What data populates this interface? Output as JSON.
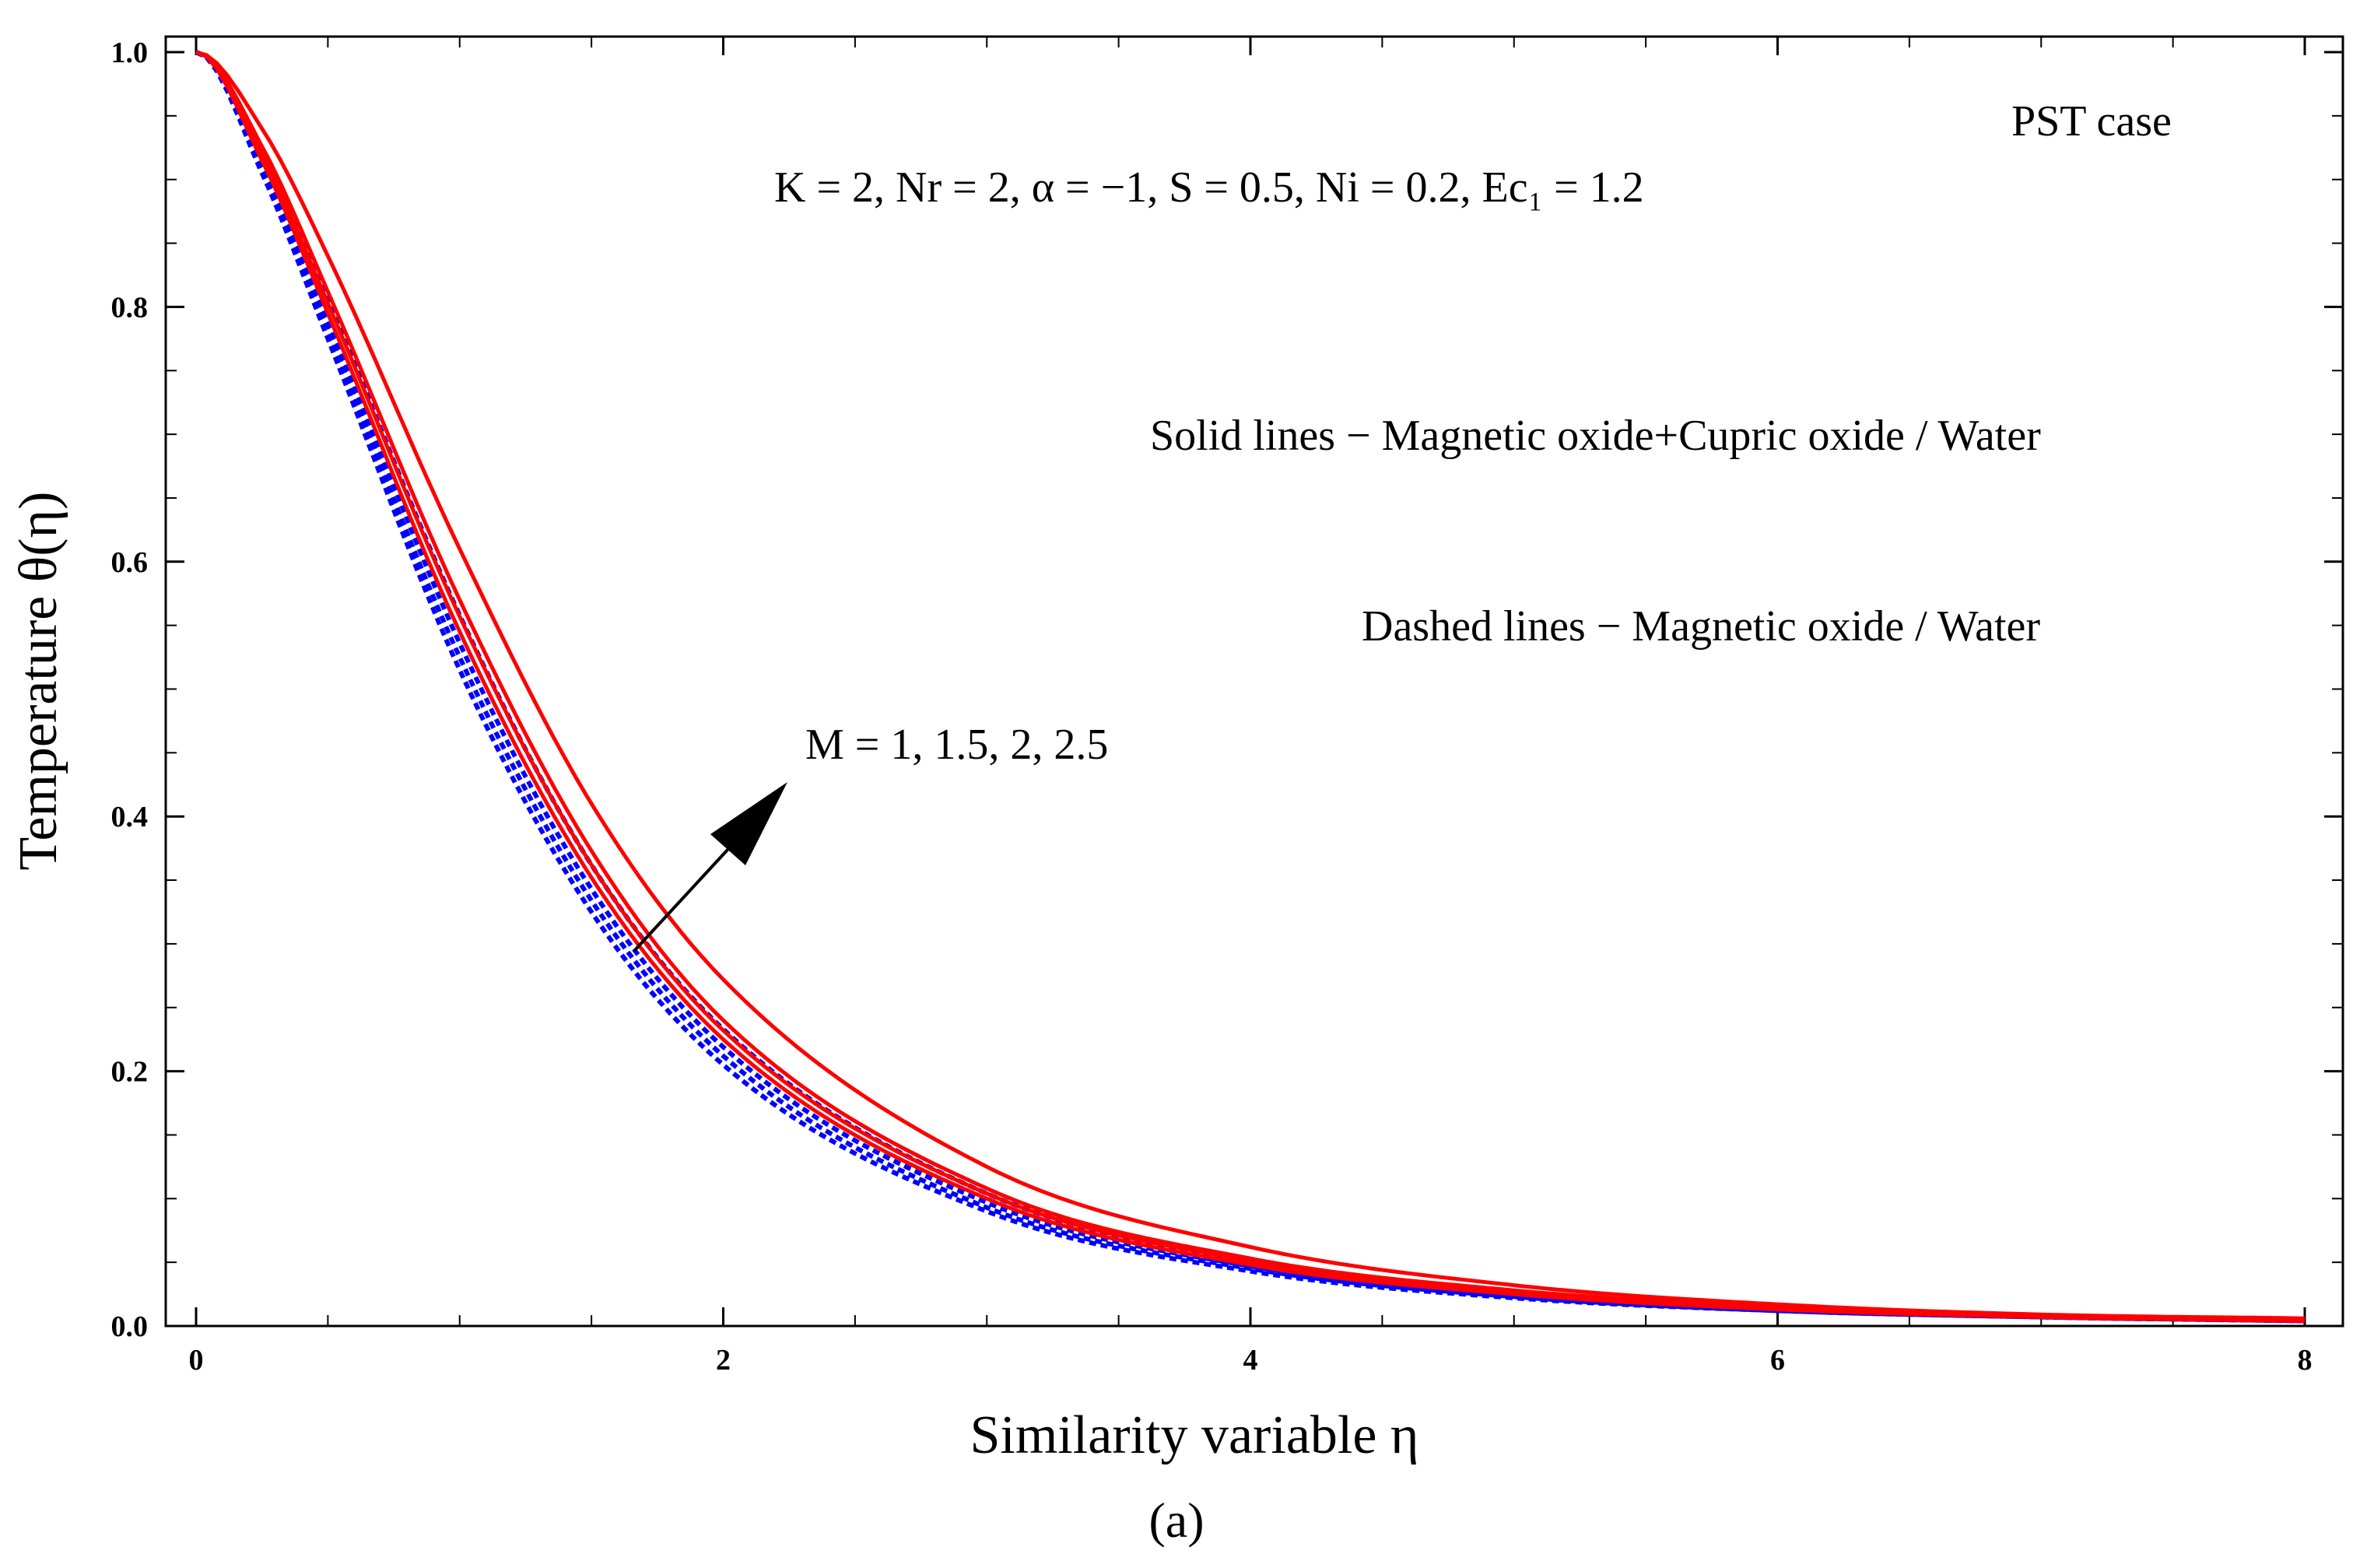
{
  "chart_data": {
    "type": "line",
    "title": "",
    "xlabel": "Similarity variable η",
    "ylabel": "Temperature θ(η)",
    "panel_label": "(a)",
    "xlim": [
      0,
      8
    ],
    "ylim": [
      0,
      1.0
    ],
    "x_ticks": [
      "0",
      "2",
      "4",
      "6",
      "8"
    ],
    "y_ticks": [
      "0.0",
      "0.2",
      "0.4",
      "0.6",
      "0.8",
      "1.0"
    ],
    "grid": false,
    "annotations": {
      "case": "PST case",
      "parameters": "K = 2,  Nr = 2,  α = −1, S = 0.5,  Ni = 0.2, Ec₁ = 1.2",
      "solid_legend": "Solid lines − Magnetic oxide+Cupric oxide / Water",
      "dashed_legend": "Dashed lines − Magnetic oxide / Water",
      "arrow_label": "M = 1, 1.5, 2, 2.5"
    },
    "x": [
      0,
      0.25,
      0.5,
      1,
      1.5,
      2,
      3,
      4,
      5,
      6,
      7,
      8
    ],
    "series": [
      {
        "style": "solid",
        "color": "#ff0000",
        "M": 1,
        "values": [
          1.0,
          0.915,
          0.795,
          0.545,
          0.352,
          0.225,
          0.1,
          0.048,
          0.025,
          0.013,
          0.007,
          0.004
        ]
      },
      {
        "style": "solid",
        "color": "#ff0000",
        "M": 1.5,
        "values": [
          1.0,
          0.92,
          0.803,
          0.557,
          0.362,
          0.232,
          0.104,
          0.051,
          0.026,
          0.014,
          0.008,
          0.004
        ]
      },
      {
        "style": "solid",
        "color": "#ff0000",
        "M": 2,
        "values": [
          1.0,
          0.926,
          0.812,
          0.57,
          0.373,
          0.24,
          0.108,
          0.053,
          0.028,
          0.015,
          0.008,
          0.005
        ]
      },
      {
        "style": "solid",
        "color": "#ff0000",
        "M": 2.5,
        "values": [
          1.0,
          0.94,
          0.84,
          0.61,
          0.41,
          0.272,
          0.125,
          0.062,
          0.032,
          0.017,
          0.009,
          0.006
        ]
      },
      {
        "style": "dashed",
        "color": "#0000ff",
        "M": 1,
        "values": [
          1.0,
          0.905,
          0.775,
          0.515,
          0.325,
          0.205,
          0.09,
          0.043,
          0.022,
          0.012,
          0.007,
          0.004
        ]
      },
      {
        "style": "dashed",
        "color": "#0000ff",
        "M": 1.5,
        "values": [
          1.0,
          0.909,
          0.782,
          0.525,
          0.334,
          0.212,
          0.093,
          0.045,
          0.023,
          0.012,
          0.007,
          0.004
        ]
      },
      {
        "style": "dashed",
        "color": "#0000ff",
        "M": 2,
        "values": [
          1.0,
          0.913,
          0.79,
          0.536,
          0.343,
          0.219,
          0.097,
          0.047,
          0.024,
          0.013,
          0.007,
          0.004
        ]
      },
      {
        "style": "dashed",
        "color": "#0000ff",
        "M": 2.5,
        "values": [
          1.0,
          0.922,
          0.805,
          0.558,
          0.362,
          0.233,
          0.104,
          0.051,
          0.026,
          0.014,
          0.008,
          0.004
        ]
      }
    ]
  }
}
